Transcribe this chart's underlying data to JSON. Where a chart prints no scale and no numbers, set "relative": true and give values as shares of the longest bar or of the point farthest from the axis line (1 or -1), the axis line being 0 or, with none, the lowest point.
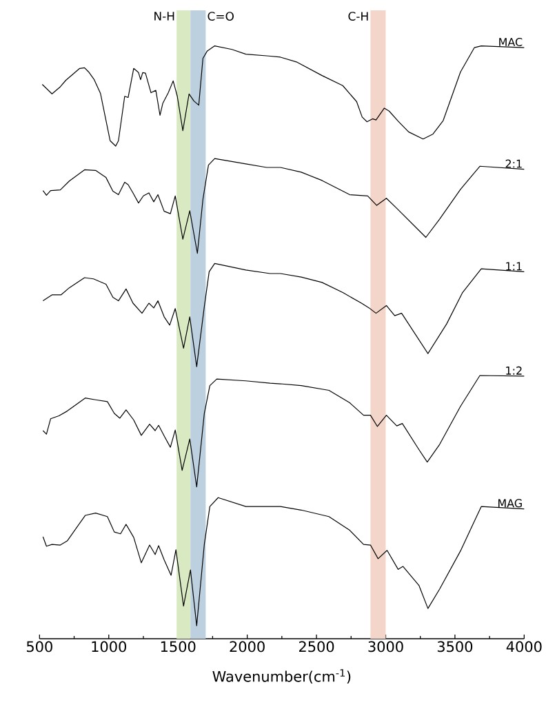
{
  "chart_data": {
    "type": "line",
    "relative": true,
    "xlabel": "Wavenumber(cm$^{-1}$)",
    "xlim": [
      500,
      4000
    ],
    "xticks": [
      500,
      1000,
      1500,
      2000,
      2500,
      3000,
      3500,
      4000
    ],
    "bands": [
      {
        "axis": "x",
        "from": 1490,
        "to": 1590,
        "label": "N-H",
        "color": "#d9eac3"
      },
      {
        "axis": "x",
        "from": 1590,
        "to": 1700,
        "label": "C=O",
        "color": "#bcd0df"
      },
      {
        "axis": "x",
        "from": 2890,
        "to": 3000,
        "label": "C-H",
        "color": "#f4d5c9"
      }
    ],
    "series": [
      {
        "name": "MAC",
        "color": "#000000",
        "x": [
          520,
          590,
          650,
          690,
          790,
          825,
          855,
          895,
          940,
          975,
          1010,
          1050,
          1070,
          1115,
          1140,
          1180,
          1215,
          1230,
          1245,
          1265,
          1305,
          1340,
          1370,
          1390,
          1430,
          1465,
          1495,
          1535,
          1580,
          1615,
          1650,
          1680,
          1710,
          1765,
          1890,
          1990,
          2155,
          2240,
          2355,
          2540,
          2690,
          2790,
          2830,
          2865,
          2905,
          2930,
          2990,
          3025,
          3090,
          3165,
          3270,
          3340,
          3415,
          3540,
          3640,
          3690,
          4000
        ],
        "values": [
          0.935,
          0.919,
          0.931,
          0.942,
          0.962,
          0.963,
          0.956,
          0.943,
          0.92,
          0.88,
          0.84,
          0.831,
          0.84,
          0.915,
          0.913,
          0.962,
          0.955,
          0.943,
          0.955,
          0.954,
          0.921,
          0.925,
          0.883,
          0.903,
          0.921,
          0.941,
          0.915,
          0.857,
          0.919,
          0.907,
          0.9,
          0.979,
          0.991,
          1.0,
          0.994,
          0.986,
          0.983,
          0.981,
          0.973,
          0.95,
          0.933,
          0.906,
          0.88,
          0.872,
          0.877,
          0.875,
          0.895,
          0.89,
          0.873,
          0.855,
          0.843,
          0.851,
          0.874,
          0.956,
          0.997,
          1.0,
          0.997
        ]
      },
      {
        "name": "2:1",
        "color": "#000000",
        "x": [
          525,
          550,
          580,
          650,
          715,
          825,
          905,
          980,
          1030,
          1070,
          1115,
          1140,
          1175,
          1215,
          1250,
          1290,
          1325,
          1355,
          1400,
          1445,
          1480,
          1535,
          1585,
          1640,
          1680,
          1720,
          1765,
          1990,
          2140,
          2240,
          2390,
          2540,
          2740,
          2870,
          2935,
          3005,
          3080,
          3290,
          3390,
          3540,
          3680,
          4000
        ],
        "values": [
          0.756,
          0.748,
          0.756,
          0.757,
          0.772,
          0.791,
          0.79,
          0.778,
          0.755,
          0.749,
          0.77,
          0.766,
          0.752,
          0.735,
          0.747,
          0.752,
          0.737,
          0.749,
          0.721,
          0.717,
          0.747,
          0.674,
          0.722,
          0.65,
          0.741,
          0.799,
          0.81,
          0.801,
          0.795,
          0.795,
          0.787,
          0.773,
          0.749,
          0.747,
          0.731,
          0.743,
          0.726,
          0.677,
          0.708,
          0.758,
          0.797,
          0.792
        ]
      },
      {
        "name": "1:1",
        "color": "#000000",
        "x": [
          525,
          550,
          590,
          655,
          715,
          825,
          890,
          980,
          1030,
          1070,
          1125,
          1175,
          1240,
          1290,
          1325,
          1355,
          1400,
          1440,
          1480,
          1540,
          1585,
          1635,
          1690,
          1725,
          1765,
          1990,
          2165,
          2240,
          2390,
          2540,
          2690,
          2825,
          2880,
          2930,
          3005,
          3065,
          3115,
          3305,
          3440,
          3555,
          3690,
          4000
        ],
        "values": [
          0.57,
          0.574,
          0.58,
          0.58,
          0.592,
          0.609,
          0.607,
          0.598,
          0.576,
          0.57,
          0.59,
          0.566,
          0.549,
          0.566,
          0.558,
          0.57,
          0.543,
          0.529,
          0.557,
          0.49,
          0.543,
          0.459,
          0.56,
          0.619,
          0.633,
          0.622,
          0.616,
          0.616,
          0.61,
          0.601,
          0.584,
          0.566,
          0.558,
          0.549,
          0.562,
          0.545,
          0.549,
          0.481,
          0.531,
          0.584,
          0.624,
          0.619
        ]
      },
      {
        "name": "1:2",
        "color": "#000000",
        "x": [
          525,
          550,
          580,
          640,
          700,
          830,
          905,
          990,
          1040,
          1080,
          1125,
          1180,
          1235,
          1295,
          1335,
          1360,
          1405,
          1445,
          1480,
          1530,
          1585,
          1635,
          1690,
          1730,
          1780,
          1990,
          2165,
          2240,
          2390,
          2590,
          2740,
          2840,
          2890,
          2940,
          3005,
          3080,
          3120,
          3240,
          3300,
          3390,
          3540,
          3680,
          4000
        ],
        "values": [
          0.351,
          0.345,
          0.371,
          0.376,
          0.384,
          0.406,
          0.403,
          0.4,
          0.38,
          0.372,
          0.386,
          0.369,
          0.343,
          0.362,
          0.351,
          0.36,
          0.34,
          0.323,
          0.352,
          0.284,
          0.337,
          0.256,
          0.38,
          0.427,
          0.438,
          0.435,
          0.431,
          0.43,
          0.427,
          0.419,
          0.398,
          0.377,
          0.377,
          0.358,
          0.377,
          0.359,
          0.363,
          0.319,
          0.298,
          0.328,
          0.392,
          0.444,
          0.443
        ]
      },
      {
        "name": "MAG",
        "color": "#000000",
        "x": [
          525,
          550,
          590,
          650,
          700,
          830,
          905,
          990,
          1040,
          1085,
          1125,
          1180,
          1235,
          1295,
          1335,
          1360,
          1400,
          1450,
          1485,
          1540,
          1590,
          1635,
          1690,
          1730,
          1790,
          1990,
          2165,
          2240,
          2390,
          2590,
          2740,
          2840,
          2890,
          2945,
          3010,
          3090,
          3125,
          3240,
          3305,
          3390,
          3540,
          3690,
          4000
        ],
        "values": [
          0.172,
          0.156,
          0.159,
          0.158,
          0.165,
          0.208,
          0.212,
          0.206,
          0.18,
          0.177,
          0.193,
          0.171,
          0.128,
          0.158,
          0.142,
          0.157,
          0.133,
          0.107,
          0.15,
          0.055,
          0.116,
          0.022,
          0.159,
          0.223,
          0.238,
          0.223,
          0.223,
          0.223,
          0.217,
          0.206,
          0.183,
          0.159,
          0.158,
          0.135,
          0.149,
          0.117,
          0.122,
          0.09,
          0.051,
          0.084,
          0.148,
          0.223,
          0.219
        ]
      }
    ]
  }
}
